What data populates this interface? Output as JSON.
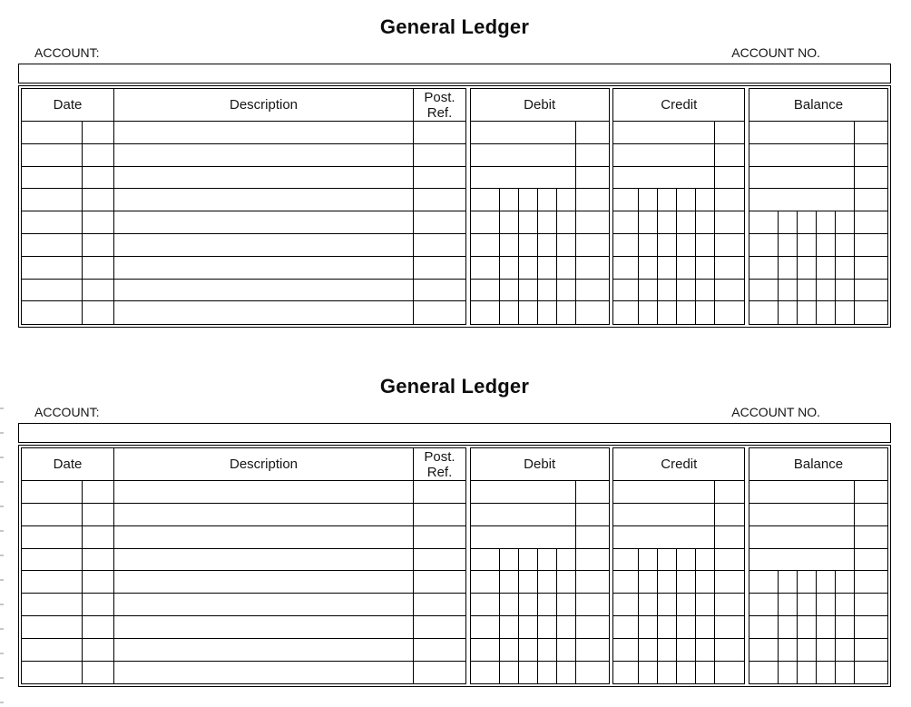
{
  "form": {
    "title": "General Ledger",
    "account_label": "ACCOUNT:",
    "account_no_label": "ACCOUNT NO.",
    "account_value": "",
    "account_no_value": "",
    "headers": {
      "date": "Date",
      "description": "Description",
      "post_ref_line1": "Post.",
      "post_ref_line2": "Ref.",
      "debit": "Debit",
      "credit": "Credit",
      "balance": "Balance"
    },
    "structure": {
      "body_rows": 9,
      "date_subcolumns": 2,
      "money_subcolumns": 6,
      "digit_grid_start_row": {
        "debit": 4,
        "credit": 4,
        "balance": 5
      }
    }
  },
  "ledger_copies": 2,
  "colors": {
    "background": "#ffffff",
    "line": "#000000",
    "text": "#111111",
    "edge_tick": "#b4b4b4"
  }
}
